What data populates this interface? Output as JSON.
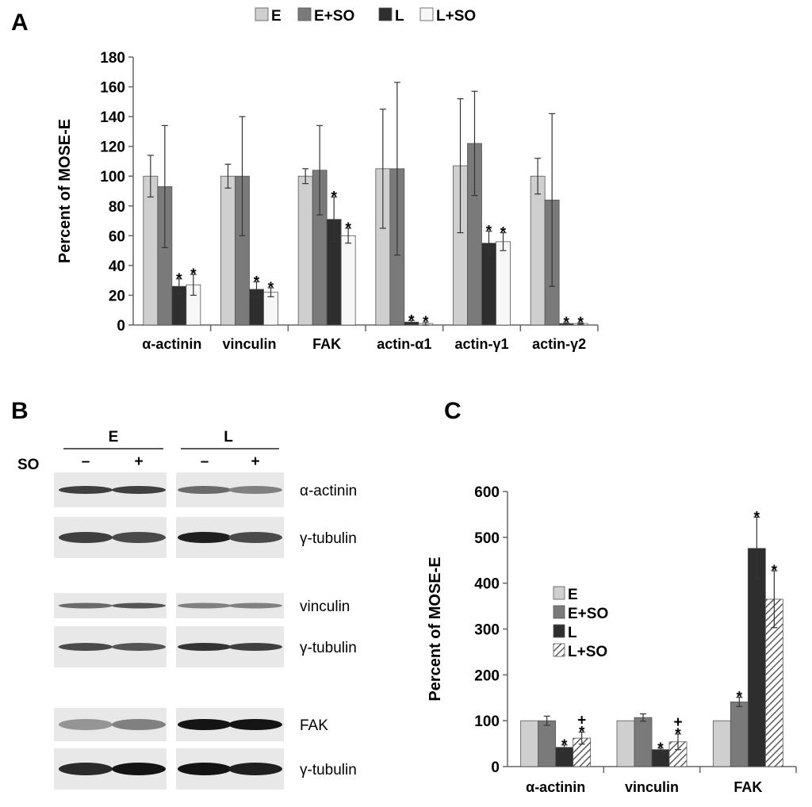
{
  "panels": {
    "a_letter": "A",
    "b_letter": "B",
    "c_letter": "C"
  },
  "colors": {
    "E": "#cfcfcf",
    "E+SO": "#7a7a7a",
    "L": "#2e2e2e",
    "L+SO": "#f7f7f7",
    "axis": "#666666"
  },
  "blot": {
    "group_left": "E",
    "group_right": "L",
    "so_label": "SO",
    "lanes": [
      "–",
      "+",
      "–",
      "+"
    ],
    "labels": [
      "α-actinin",
      "γ-tubulin",
      "vinculin",
      "γ-tubulin",
      "FAK",
      "γ-tubulin"
    ]
  },
  "chart_data": [
    {
      "panel": "A",
      "type": "bar",
      "ylabel": "Percent of MOSE-E",
      "ylim": [
        0,
        180
      ],
      "yticks": [
        0,
        20,
        40,
        60,
        80,
        100,
        120,
        140,
        160,
        180
      ],
      "categories": [
        "α-actinin",
        "vinculin",
        "FAK",
        "actin-α1",
        "actin-γ1",
        "actin-γ2"
      ],
      "series": [
        {
          "name": "E",
          "values": [
            100,
            100,
            100,
            105,
            107,
            100
          ],
          "errors": [
            14,
            8,
            5,
            40,
            45,
            12
          ]
        },
        {
          "name": "E+SO",
          "values": [
            93,
            100,
            104,
            105,
            122,
            84
          ],
          "errors": [
            41,
            40,
            30,
            58,
            35,
            58
          ]
        },
        {
          "name": "L",
          "values": [
            26,
            24,
            71,
            2,
            55,
            1
          ],
          "errors": [
            5,
            5,
            15,
            1,
            8,
            0.5
          ]
        },
        {
          "name": "L+SO",
          "values": [
            27,
            22,
            60,
            1,
            56,
            1
          ],
          "errors": [
            7,
            3,
            5,
            1,
            6,
            0.5
          ]
        }
      ],
      "significance": [
        [
          "",
          "",
          "*",
          "*"
        ],
        [
          "",
          "",
          "*",
          "*"
        ],
        [
          "",
          "",
          "*",
          "*"
        ],
        [
          "",
          "",
          "*",
          "*"
        ],
        [
          "",
          "",
          "*",
          "*"
        ],
        [
          "",
          "",
          "*",
          "*"
        ]
      ],
      "legend": "top",
      "grid": false
    },
    {
      "panel": "C",
      "type": "bar",
      "ylabel": "Percent of MOSE-E",
      "ylim": [
        0,
        600
      ],
      "yticks": [
        0,
        100,
        200,
        300,
        400,
        500,
        600
      ],
      "categories": [
        "α-actinin",
        "vinculin",
        "FAK"
      ],
      "series": [
        {
          "name": "E",
          "values": [
            100,
            100,
            100
          ],
          "errors": [
            0,
            0,
            0
          ]
        },
        {
          "name": "E+SO",
          "values": [
            100,
            107,
            141
          ],
          "errors": [
            10,
            8,
            10
          ]
        },
        {
          "name": "L",
          "values": [
            42,
            37,
            476
          ],
          "errors": [
            5,
            3,
            68
          ]
        },
        {
          "name": "L+SO",
          "values": [
            62,
            54,
            365
          ],
          "errors": [
            13,
            17,
            62
          ]
        }
      ],
      "significance": [
        [
          "",
          "",
          "*",
          "*\n+"
        ],
        [
          "",
          "",
          "*",
          "*\n+"
        ],
        [
          "",
          "*",
          "*",
          "*"
        ]
      ],
      "legend": "center-left",
      "grid": false
    }
  ]
}
